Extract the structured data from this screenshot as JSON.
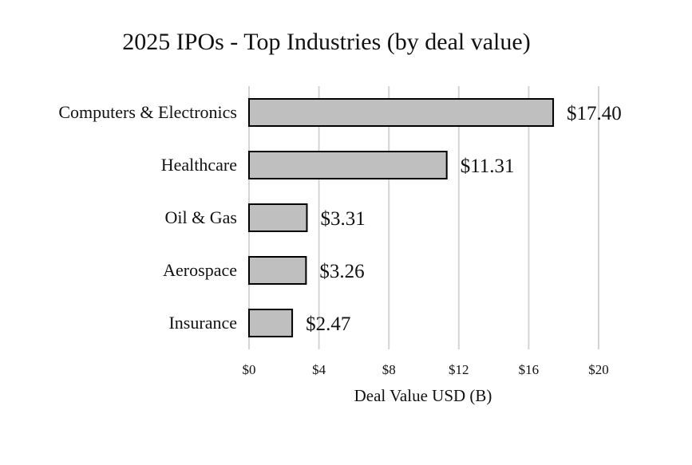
{
  "chart_data": {
    "type": "bar",
    "orientation": "horizontal",
    "title": "2025 IPOs  - Top Industries (by deal value)",
    "xlabel": "Deal Value USD (B)",
    "ylabel": "",
    "categories": [
      "Computers & Electronics",
      "Healthcare",
      "Oil & Gas",
      "Aerospace",
      "Insurance"
    ],
    "values": [
      17.4,
      11.31,
      3.31,
      3.26,
      2.47
    ],
    "value_labels": [
      "$17.40",
      "$11.31",
      "$3.31",
      "$3.26",
      "$2.47"
    ],
    "xlim": [
      0,
      20
    ],
    "xticks": [
      0,
      4,
      8,
      12,
      16,
      20
    ],
    "xtick_labels": [
      "$0",
      "$4",
      "$8",
      "$12",
      "$16",
      "$20"
    ],
    "grid": true,
    "legend": "none",
    "colors": {
      "bar_fill": "#bfbfbf",
      "bar_stroke": "#000000",
      "grid": "#d4d4d4"
    }
  }
}
